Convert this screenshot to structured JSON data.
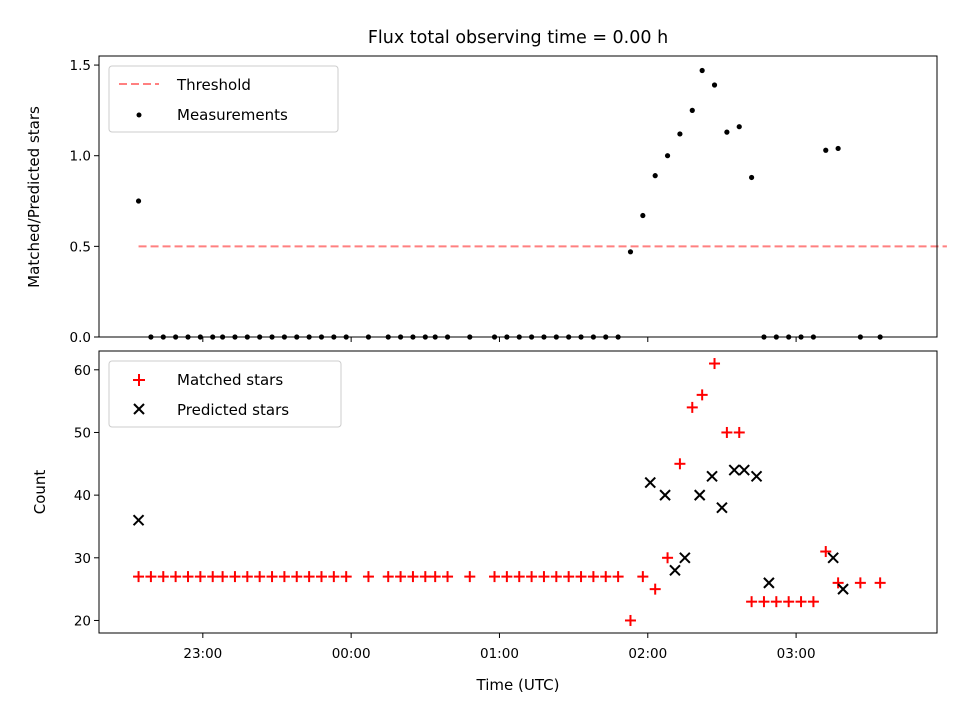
{
  "chart_data": [
    {
      "type": "scatter",
      "title": "Flux total observing time = 0.00 h",
      "xlabel": "",
      "ylabel": "Matched/Predicted stars",
      "xlim": [
        "22:18",
        "03:57"
      ],
      "ylim": [
        0,
        1.55
      ],
      "yticks": [
        0.0,
        0.5,
        1.0,
        1.5
      ],
      "ytick_labels": [
        "0.0",
        "0.5",
        "1.0",
        "1.5"
      ],
      "legend_position": "top-left",
      "threshold": {
        "name": "Threshold",
        "value": 0.5,
        "x_range": [
          "22:34",
          "04:01"
        ],
        "color": "#ff8080",
        "style": "dashed"
      },
      "series": [
        {
          "name": "Measurements",
          "color": "#000000",
          "marker": "dot",
          "x": [
            "22:34",
            "22:39",
            "22:44",
            "22:49",
            "22:54",
            "22:59",
            "23:04",
            "23:08",
            "23:13",
            "23:18",
            "23:23",
            "23:28",
            "23:33",
            "23:38",
            "23:43",
            "23:48",
            "23:53",
            "23:58",
            "24:07",
            "24:15",
            "24:20",
            "24:25",
            "24:30",
            "24:34",
            "24:39",
            "24:48",
            "24:58",
            "25:03",
            "25:08",
            "25:13",
            "25:18",
            "25:23",
            "25:28",
            "25:33",
            "25:38",
            "25:43",
            "25:48",
            "25:53",
            "25:58",
            "26:03",
            "26:08",
            "26:13",
            "26:18",
            "26:22",
            "26:27",
            "26:32",
            "26:37",
            "26:42",
            "26:47",
            "26:52",
            "26:57",
            "27:02",
            "27:07",
            "27:12",
            "27:17",
            "27:26",
            "27:34"
          ],
          "y": [
            0.75,
            0,
            0,
            0,
            0,
            0,
            0,
            0,
            0,
            0,
            0,
            0,
            0,
            0,
            0,
            0,
            0,
            0,
            0,
            0,
            0,
            0,
            0,
            0,
            0,
            0,
            0,
            0,
            0,
            0,
            0,
            0,
            0,
            0,
            0,
            0,
            0,
            0.47,
            0.67,
            0.89,
            1.0,
            1.12,
            1.25,
            1.47,
            1.39,
            1.13,
            1.16,
            0.88,
            0,
            0,
            0,
            0,
            0,
            1.03,
            1.04,
            0,
            0
          ]
        }
      ]
    },
    {
      "type": "scatter",
      "title": "",
      "xlabel": "Time (UTC)",
      "ylabel": "Count",
      "xlim": [
        "22:18",
        "03:57"
      ],
      "ylim": [
        18,
        63
      ],
      "yticks": [
        20,
        30,
        40,
        50,
        60
      ],
      "ytick_labels": [
        "20",
        "30",
        "40",
        "50",
        "60"
      ],
      "xticks": [
        "23:00",
        "00:00",
        "01:00",
        "02:00",
        "03:00"
      ],
      "legend_position": "top-left",
      "series": [
        {
          "name": "Matched stars",
          "color": "#ff0000",
          "marker": "plus",
          "x": [
            "22:34",
            "22:39",
            "22:44",
            "22:49",
            "22:54",
            "22:59",
            "23:04",
            "23:08",
            "23:13",
            "23:18",
            "23:23",
            "23:28",
            "23:33",
            "23:38",
            "23:43",
            "23:48",
            "23:53",
            "23:58",
            "24:07",
            "24:15",
            "24:20",
            "24:25",
            "24:30",
            "24:34",
            "24:39",
            "24:48",
            "24:58",
            "25:03",
            "25:08",
            "25:13",
            "25:18",
            "25:23",
            "25:28",
            "25:33",
            "25:38",
            "25:43",
            "25:48",
            "25:53",
            "25:58",
            "26:03",
            "26:08",
            "26:13",
            "26:18",
            "26:22",
            "26:27",
            "26:32",
            "26:37",
            "26:42",
            "26:47",
            "26:52",
            "26:57",
            "27:02",
            "27:07",
            "27:12",
            "27:17",
            "27:26",
            "27:34"
          ],
          "y": [
            27,
            27,
            27,
            27,
            27,
            27,
            27,
            27,
            27,
            27,
            27,
            27,
            27,
            27,
            27,
            27,
            27,
            27,
            27,
            27,
            27,
            27,
            27,
            27,
            27,
            27,
            27,
            27,
            27,
            27,
            27,
            27,
            27,
            27,
            27,
            27,
            27,
            20,
            27,
            25,
            30,
            45,
            54,
            56,
            61,
            50,
            50,
            23,
            23,
            23,
            23,
            23,
            23,
            31,
            26,
            26,
            26
          ]
        },
        {
          "name": "Predicted stars",
          "color": "#000000",
          "marker": "x",
          "x": [
            "22:34",
            "26:01",
            "26:07",
            "26:11",
            "26:15",
            "26:21",
            "26:26",
            "26:30",
            "26:35",
            "26:39",
            "26:44",
            "26:49",
            "27:15",
            "27:19"
          ],
          "y": [
            36,
            42,
            40,
            28,
            30,
            40,
            43,
            38,
            44,
            44,
            43,
            26,
            30,
            25
          ]
        }
      ]
    }
  ]
}
